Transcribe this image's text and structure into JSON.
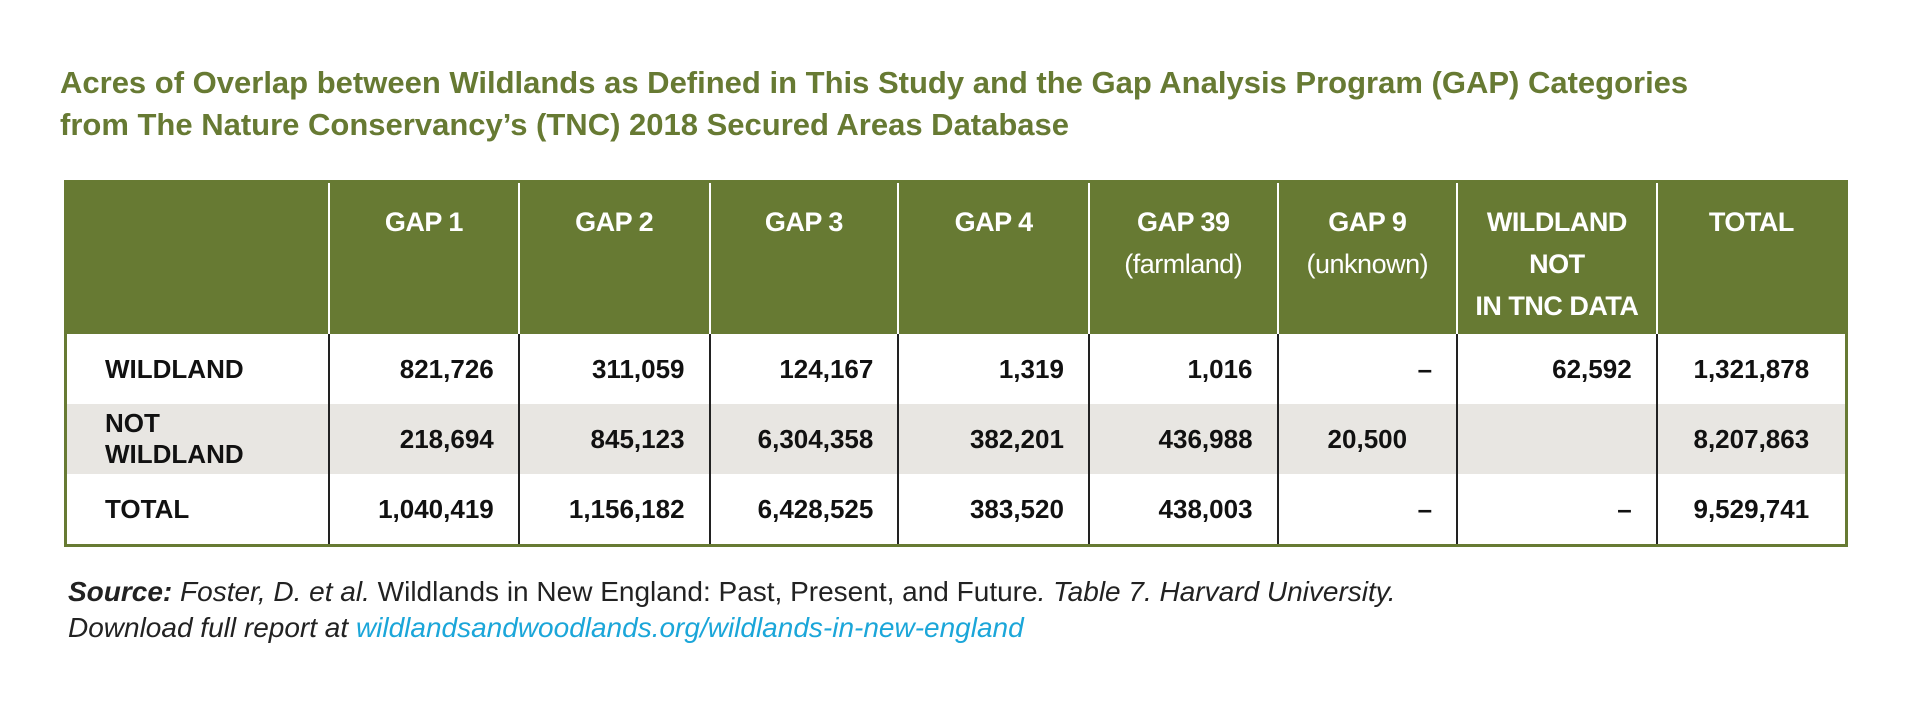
{
  "title": {
    "line1": "Acres of Overlap between Wildlands as Defined in This Study and the Gap Analysis Program (GAP) Categories",
    "line2": "from The Nature Conservancy’s (TNC) 2018 Secured Areas Database"
  },
  "table": {
    "headers": [
      {
        "line1": "",
        "line2": ""
      },
      {
        "line1": "GAP 1",
        "line2": ""
      },
      {
        "line1": "GAP 2",
        "line2": ""
      },
      {
        "line1": "GAP 3",
        "line2": ""
      },
      {
        "line1": "GAP 4",
        "line2": ""
      },
      {
        "line1": "GAP 39",
        "line2": "(farmland)"
      },
      {
        "line1": "GAP 9",
        "line2": "(unknown)"
      },
      {
        "line1": "WILDLAND NOT",
        "line2": "IN TNC DATA"
      },
      {
        "line1": "TOTAL",
        "line2": ""
      }
    ],
    "rows": [
      {
        "label": "WILDLAND",
        "cells": [
          "821,726",
          "311,059",
          "124,167",
          "1,319",
          "1,016",
          "–",
          "62,592",
          "1,321,878"
        ]
      },
      {
        "label": "NOT WILDLAND",
        "cells": [
          "218,694",
          "845,123",
          "6,304,358",
          "382,201",
          "436,988",
          "20,500",
          "",
          "8,207,863"
        ]
      },
      {
        "label": "TOTAL",
        "cells": [
          "1,040,419",
          "1,156,182",
          "6,428,525",
          "383,520",
          "438,003",
          "–",
          "–",
          "9,529,741"
        ]
      }
    ]
  },
  "source": {
    "label": "Source:",
    "authors": "Foster, D. et al.",
    "work": "Wildlands in New England: Past, Present, and Future",
    "table_ref": ". Table 7. Harvard University.",
    "download_text": "Download full report at",
    "link": "wildlandsandwoodlands.org/wildlands-in-new-england"
  },
  "colors": {
    "header_green": "#677a33",
    "link_blue": "#1ba6d9",
    "row_shade": "#e8e6e2"
  }
}
